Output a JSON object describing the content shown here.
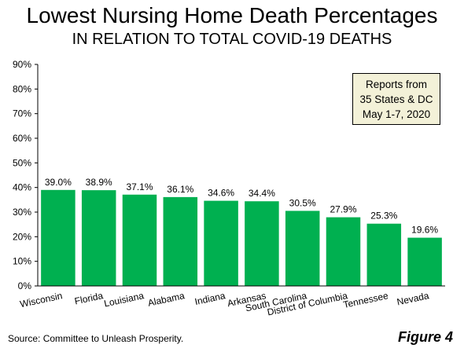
{
  "chart_data": {
    "type": "bar",
    "title": "Lowest Nursing Home Death Percentages",
    "subtitle": "IN RELATION TO TOTAL COVID-19 DEATHS",
    "categories": [
      "Wisconsin",
      "Florida",
      "Louisiana",
      "Alabama",
      "Indiana",
      "Arkansas",
      "South Carolina",
      "District of Columbia",
      "Tennessee",
      "Nevada"
    ],
    "values": [
      39.0,
      38.9,
      37.1,
      36.1,
      34.6,
      34.4,
      30.5,
      27.9,
      25.3,
      19.6
    ],
    "data_labels": [
      "39.0%",
      "38.9%",
      "37.1%",
      "36.1%",
      "34.6%",
      "34.4%",
      "30.5%",
      "27.9%",
      "25.3%",
      "19.6%"
    ],
    "y_ticks": [
      "0%",
      "10%",
      "20%",
      "30%",
      "40%",
      "50%",
      "60%",
      "70%",
      "80%",
      "90%"
    ],
    "ylim": [
      0,
      90
    ],
    "xlabel": "",
    "ylabel": "",
    "grid": false,
    "bar_color": "#00b050",
    "annotation": [
      "Reports from",
      "35 States & DC",
      "May 1-7, 2020"
    ]
  },
  "footer": {
    "source": "Source: Committee to Unleash Prosperity.",
    "figure": "Figure 4"
  },
  "colors": {
    "bar": "#00b050",
    "annotation_bg": "#f3f1d8"
  }
}
